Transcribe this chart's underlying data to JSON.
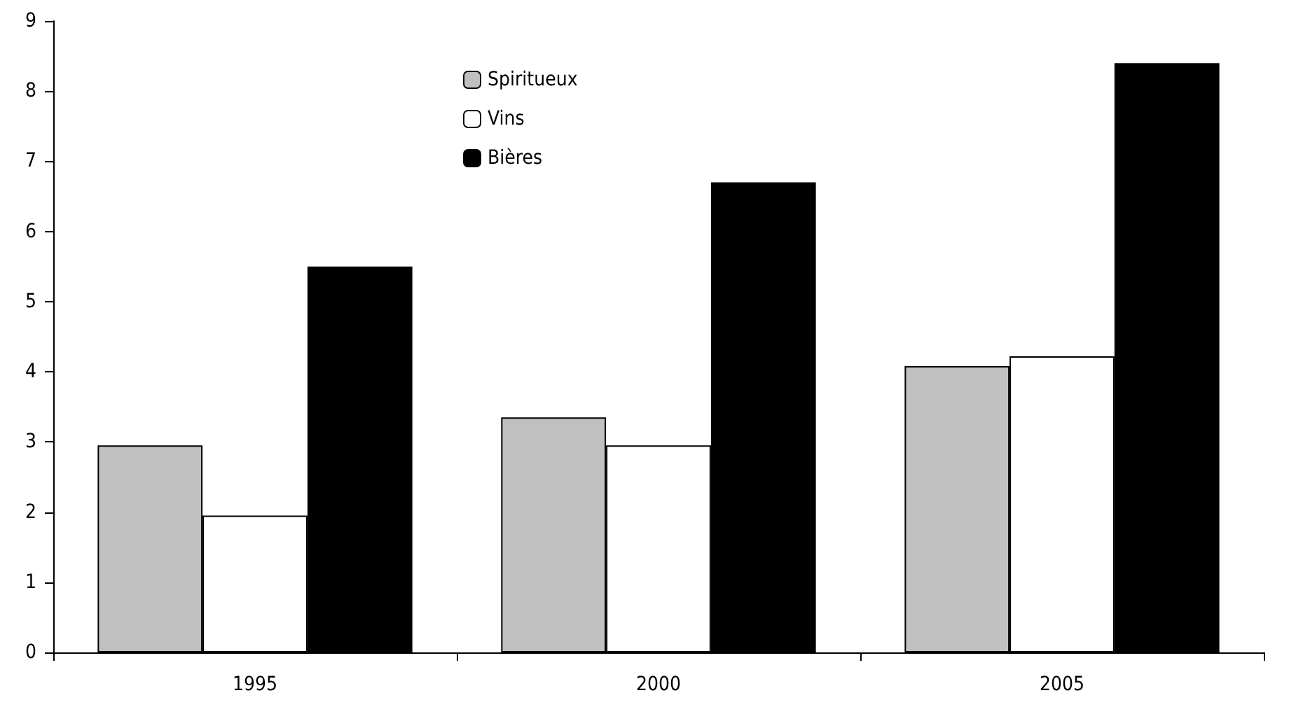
{
  "chart_data": {
    "type": "bar",
    "categories": [
      "1995",
      "2000",
      "2005"
    ],
    "series": [
      {
        "name": "Spiritueux",
        "color": "#c0c0c0",
        "values": [
          2.95,
          3.35,
          4.08
        ]
      },
      {
        "name": "Vins",
        "color": "#ffffff",
        "values": [
          1.95,
          2.95,
          4.22
        ]
      },
      {
        "name": "Bières",
        "color": "#000000",
        "values": [
          5.5,
          6.7,
          8.4
        ]
      }
    ],
    "ylim": [
      0,
      9
    ],
    "yticks": [
      0,
      1,
      2,
      3,
      4,
      5,
      6,
      7,
      8,
      9
    ],
    "grid": false,
    "legend": "top"
  }
}
